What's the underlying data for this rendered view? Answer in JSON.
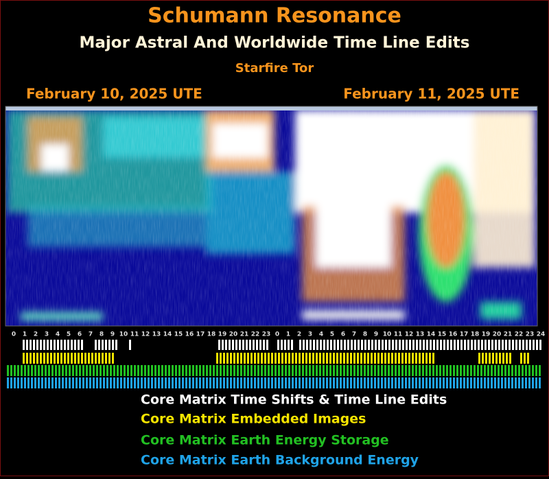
{
  "header": {
    "title": "Schumann Resonance",
    "subtitle": "Major Astral And Worldwide Time Line Edits",
    "author": "Starfire Tor"
  },
  "dates": [
    "February 10, 2025 UTE",
    "February 11, 2025 UTE"
  ],
  "hour_labels": [
    "0",
    "1",
    "2",
    "3",
    "4",
    "5",
    "6",
    "7",
    "8",
    "9",
    "10",
    "11",
    "12",
    "13",
    "14",
    "15",
    "16",
    "17",
    "18",
    "19",
    "20",
    "21",
    "22",
    "23",
    "0",
    "1",
    "2",
    "3",
    "4",
    "5",
    "6",
    "7",
    "8",
    "9",
    "10",
    "11",
    "12",
    "13",
    "14",
    "15",
    "16",
    "17",
    "18",
    "19",
    "20",
    "21",
    "22",
    "23",
    "24"
  ],
  "legend": [
    "Core Matrix Time Shifts & Time Line Edits",
    "Core Matrix Embedded Images",
    "Core Matrix Earth Energy Storage",
    "Core Matrix Earth Background Energy"
  ]
}
